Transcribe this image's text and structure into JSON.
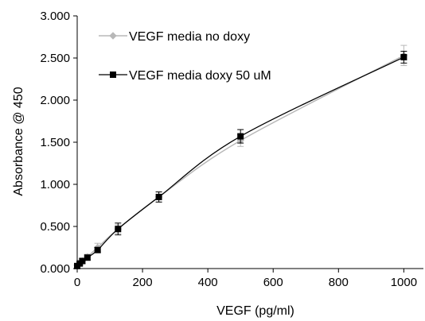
{
  "chart_data": {
    "type": "line",
    "title": "",
    "xlabel": "VEGF (pg/ml)",
    "ylabel": "Absorbance @ 450",
    "xlim": [
      0,
      1060
    ],
    "ylim": [
      0,
      3.0
    ],
    "x_ticks": [
      0,
      200,
      400,
      600,
      800,
      1000
    ],
    "x_tick_labels": [
      "0",
      "200",
      "400",
      "600",
      "800",
      "1000"
    ],
    "y_ticks": [
      0,
      0.5,
      1.0,
      1.5,
      2.0,
      2.5,
      3.0
    ],
    "y_tick_labels": [
      "0.000",
      "0.500",
      "1.000",
      "1.500",
      "2.000",
      "2.500",
      "3.000"
    ],
    "grid": false,
    "legend_position": "top-left",
    "series": [
      {
        "name": "VEGF media no doxy",
        "color": "#b8b8b8",
        "marker": "diamond",
        "x": [
          0,
          7.8,
          15.6,
          31.25,
          62.5,
          125,
          250,
          500,
          1000
        ],
        "y": [
          0.04,
          0.06,
          0.09,
          0.14,
          0.25,
          0.47,
          0.85,
          1.52,
          2.53
        ],
        "err": [
          0.02,
          0.02,
          0.03,
          0.03,
          0.05,
          0.05,
          0.06,
          0.07,
          0.12
        ]
      },
      {
        "name": "VEGF media doxy 50 uM",
        "color": "#000000",
        "marker": "square",
        "x": [
          0,
          7.8,
          15.6,
          31.25,
          62.5,
          125,
          250,
          500,
          1000
        ],
        "y": [
          0.03,
          0.06,
          0.09,
          0.13,
          0.22,
          0.47,
          0.85,
          1.57,
          2.51
        ],
        "err": [
          0.02,
          0.02,
          0.03,
          0.03,
          0.03,
          0.07,
          0.06,
          0.08,
          0.07
        ]
      }
    ]
  }
}
